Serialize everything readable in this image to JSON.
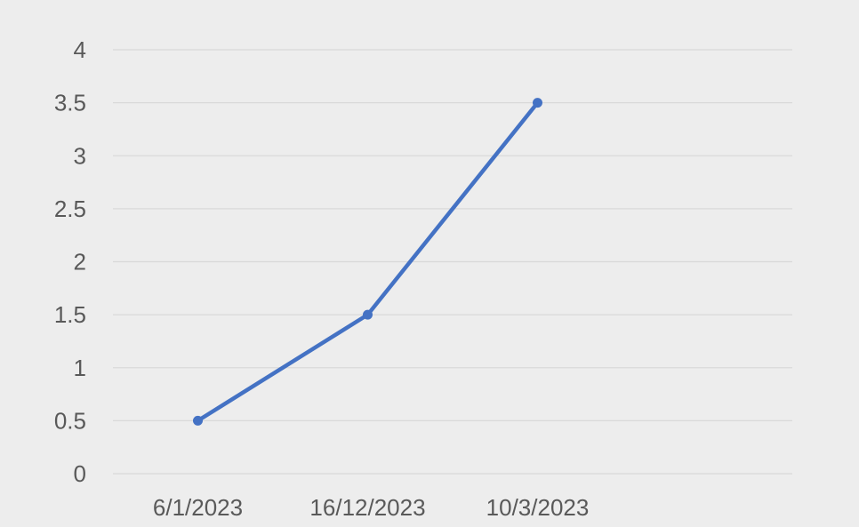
{
  "chart_data": {
    "type": "line",
    "title": "",
    "xlabel": "",
    "ylabel": "",
    "categories": [
      "6/1/2023",
      "16/12/2023",
      "10/3/2023",
      ""
    ],
    "series": [
      {
        "values": [
          0.5,
          1.5,
          3.5,
          null
        ],
        "color": "#4472c4"
      }
    ],
    "yticks": [
      "0",
      "0.5",
      "1",
      "1.5",
      "2",
      "2.5",
      "3",
      "3.5",
      "4"
    ],
    "ylim": [
      0,
      4
    ],
    "grid": true,
    "legend": "none"
  }
}
